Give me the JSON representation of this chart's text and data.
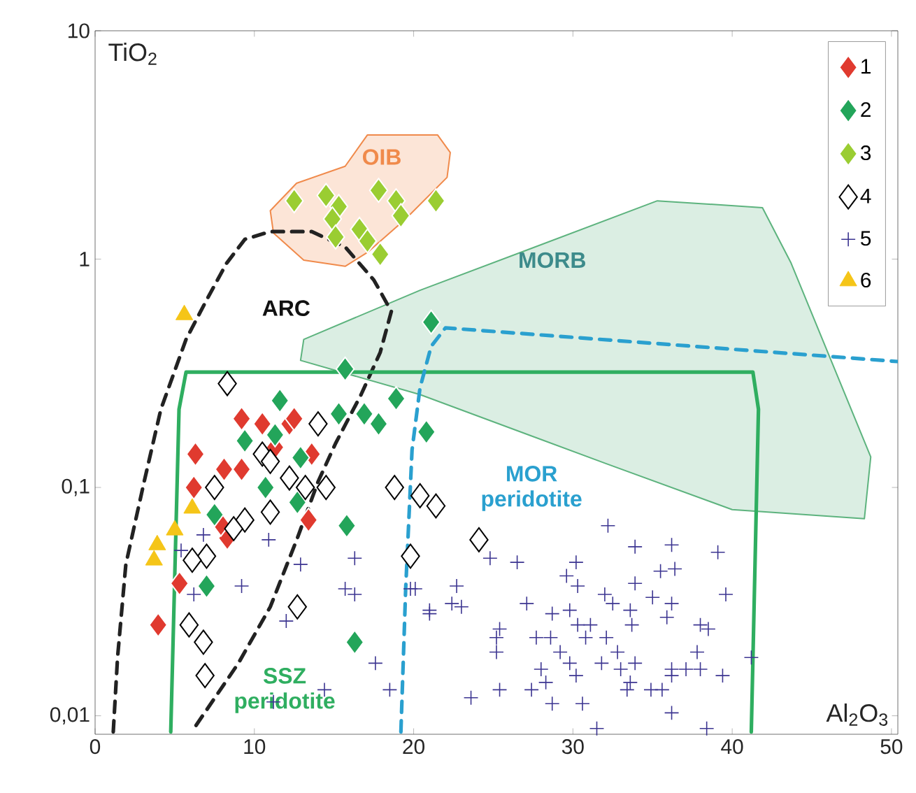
{
  "chart_data": {
    "type": "scatter",
    "xlabel": "Al$_{2}$O$_{3}$",
    "ylabel": "TiO$_{2}$",
    "log": "y",
    "legend": "top right",
    "xlim": [
      0,
      50.4
    ],
    "ylim": [
      0.0083,
      10
    ],
    "xticks": [
      0,
      10,
      20,
      30,
      40,
      50
    ],
    "yticks": [
      {
        "value": 0.01,
        "label": "0,01"
      },
      {
        "value": 0.1,
        "label": "0,1"
      },
      {
        "value": 1,
        "label": "1"
      },
      {
        "value": 10,
        "label": "10"
      }
    ],
    "series": [
      {
        "type": "area",
        "color": "#5db37e",
        "x": [
          13.1,
          20.4,
          35.3,
          41.9,
          43.7,
          48.7,
          48.3,
          40.0,
          32.1,
          20.4,
          12.9
        ],
        "values": [
          0.445,
          0.73,
          1.8,
          1.68,
          0.96,
          0.136,
          0.073,
          0.08,
          0.127,
          0.255,
          0.36
        ]
      },
      {
        "type": "area",
        "color": "#f08a4b",
        "x": [
          11.0,
          12.65,
          15.7,
          17.1,
          21.5,
          22.3,
          22.1,
          19.5,
          17.1,
          15.7,
          13.1,
          11.2
        ],
        "values": [
          1.63,
          2.15,
          2.55,
          3.5,
          3.5,
          2.93,
          2.28,
          1.5,
          1.07,
          0.93,
          0.99,
          1.3
        ]
      },
      {
        "type": "line",
        "line_style": "dashed",
        "color": "#222222",
        "x": [
          1.14,
          1.41,
          1.93,
          3.08,
          4.13,
          5.71,
          6.94,
          8.26,
          9.4,
          11.0,
          13.6,
          15.7,
          17.5,
          18.6,
          17.9,
          16.7,
          15.1,
          14.0,
          12.7,
          11.0,
          9.0,
          6.06
        ],
        "values": [
          0.0085,
          0.018,
          0.046,
          0.106,
          0.22,
          0.445,
          0.65,
          0.96,
          1.22,
          1.32,
          1.32,
          1.13,
          0.81,
          0.59,
          0.39,
          0.255,
          0.156,
          0.106,
          0.06,
          0.03,
          0.017,
          0.0085
        ]
      },
      {
        "type": "line",
        "line_style": "solid",
        "color": "#2fae60",
        "x": [
          4.75,
          5.27,
          5.71,
          41.3,
          41.65,
          41.2
        ],
        "values": [
          0.0085,
          0.22,
          0.32,
          0.32,
          0.22,
          0.0085
        ]
      },
      {
        "type": "line",
        "line_style": "dashed",
        "color": "#2aa0cf",
        "x": [
          19.2,
          19.5,
          19.9,
          20.4,
          21.1,
          22.0,
          50.4
        ],
        "values": [
          0.0085,
          0.036,
          0.146,
          0.273,
          0.415,
          0.5,
          0.356
        ]
      },
      {
        "name": "1",
        "marker": "diamond",
        "color": "#e03a2f",
        "x": [
          3.96,
          5.3,
          6.3,
          6.2,
          8.3,
          10.5,
          8.1,
          9.2,
          12.2,
          13.6,
          13.4,
          11.3,
          7.9,
          9.2,
          12.5
        ],
        "values": [
          0.025,
          0.038,
          0.14,
          0.1,
          0.06,
          0.19,
          0.12,
          0.12,
          0.19,
          0.14,
          0.072,
          0.15,
          0.069,
          0.2,
          0.2
        ]
      },
      {
        "name": "2",
        "marker": "diamond",
        "color": "#23a55a",
        "x": [
          11.6,
          15.7,
          9.4,
          10.7,
          7.5,
          7.0,
          15.8,
          16.3,
          12.9,
          16.9,
          18.9,
          17.8,
          20.8,
          15.3,
          12.7,
          11.3,
          21.1
        ],
        "values": [
          0.24,
          0.33,
          0.16,
          0.1,
          0.076,
          0.037,
          0.068,
          0.021,
          0.135,
          0.21,
          0.245,
          0.19,
          0.175,
          0.21,
          0.086,
          0.17,
          0.53
        ]
      },
      {
        "name": "3",
        "marker": "diamond",
        "color": "#9acd32",
        "x": [
          12.5,
          14.5,
          15.3,
          14.9,
          16.6,
          15.1,
          17.9,
          17.8,
          18.9,
          19.2,
          21.4,
          17.1
        ],
        "values": [
          1.8,
          1.9,
          1.7,
          1.5,
          1.35,
          1.25,
          1.05,
          2.0,
          1.8,
          1.55,
          1.8,
          1.2
        ]
      },
      {
        "name": "4",
        "marker": "diamond",
        "color": "#ffffff",
        "x": [
          8.3,
          7.5,
          14.0,
          10.5,
          11.0,
          12.2,
          13.2,
          14.5,
          11.0,
          9.4,
          8.7,
          7.0,
          6.1,
          12.7,
          5.9,
          6.8,
          6.9,
          18.8,
          20.4,
          21.4,
          19.8,
          24.1
        ],
        "values": [
          0.285,
          0.1,
          0.19,
          0.14,
          0.13,
          0.11,
          0.1,
          0.1,
          0.078,
          0.072,
          0.066,
          0.05,
          0.048,
          0.03,
          0.025,
          0.021,
          0.015,
          0.1,
          0.092,
          0.083,
          0.05,
          0.059
        ]
      },
      {
        "name": "5",
        "marker": "cross",
        "color": "#3c3591",
        "x": [
          32.2,
          33.9,
          36.2,
          39.1,
          24.8,
          26.5,
          30.2,
          29.6,
          30.3,
          35.5,
          36.4,
          33.9,
          19.8,
          22.7,
          39.6,
          32.0,
          32.5,
          35.0,
          36.2,
          33.6,
          27.1,
          28.7,
          29.8,
          30.3,
          31.1,
          35.9,
          21.0,
          22.4,
          23.0,
          33.7,
          38.0,
          38.5,
          25.4,
          25.2,
          27.7,
          28.6,
          30.8,
          32.1,
          32.8,
          37.8,
          25.2,
          29.2,
          29.8,
          31.8,
          33.0,
          33.9,
          36.2,
          37.1,
          38.0,
          28.0,
          39.4,
          30.2,
          28.3,
          27.4,
          33.6,
          36.2,
          23.6,
          25.4,
          33.4,
          34.9,
          35.6,
          28.7,
          30.6,
          36.2,
          31.5,
          38.4,
          41.2,
          6.8,
          5.4,
          10.9,
          12.9,
          16.3,
          9.2,
          15.7,
          16.3,
          6.2,
          12.0,
          17.6,
          18.5,
          14.4,
          11.2,
          20.1,
          21.0
        ],
        "values": [
          0.068,
          0.055,
          0.056,
          0.052,
          0.049,
          0.047,
          0.047,
          0.041,
          0.037,
          0.043,
          0.044,
          0.038,
          0.036,
          0.037,
          0.034,
          0.034,
          0.031,
          0.033,
          0.031,
          0.029,
          0.031,
          0.028,
          0.029,
          0.025,
          0.025,
          0.027,
          0.029,
          0.031,
          0.03,
          0.025,
          0.025,
          0.024,
          0.024,
          0.022,
          0.022,
          0.022,
          0.022,
          0.022,
          0.019,
          0.019,
          0.019,
          0.019,
          0.017,
          0.017,
          0.016,
          0.017,
          0.016,
          0.016,
          0.016,
          0.016,
          0.015,
          0.015,
          0.014,
          0.013,
          0.014,
          0.015,
          0.012,
          0.013,
          0.013,
          0.013,
          0.013,
          0.0113,
          0.0113,
          0.0103,
          0.0088,
          0.0088,
          0.018,
          0.062,
          0.053,
          0.059,
          0.046,
          0.049,
          0.037,
          0.036,
          0.034,
          0.034,
          0.026,
          0.017,
          0.013,
          0.013,
          0.0115,
          0.036,
          0.028
        ]
      },
      {
        "name": "6",
        "marker": "triangle",
        "color": "#f5c518",
        "x": [
          5.6,
          6.1,
          5.0,
          3.9,
          3.7
        ],
        "values": [
          0.57,
          0.081,
          0.065,
          0.056,
          0.048
        ]
      }
    ],
    "annotations": [
      "OIB",
      "ARC",
      "MORB",
      "MOR peridotite",
      "SSZ peridotite"
    ]
  }
}
